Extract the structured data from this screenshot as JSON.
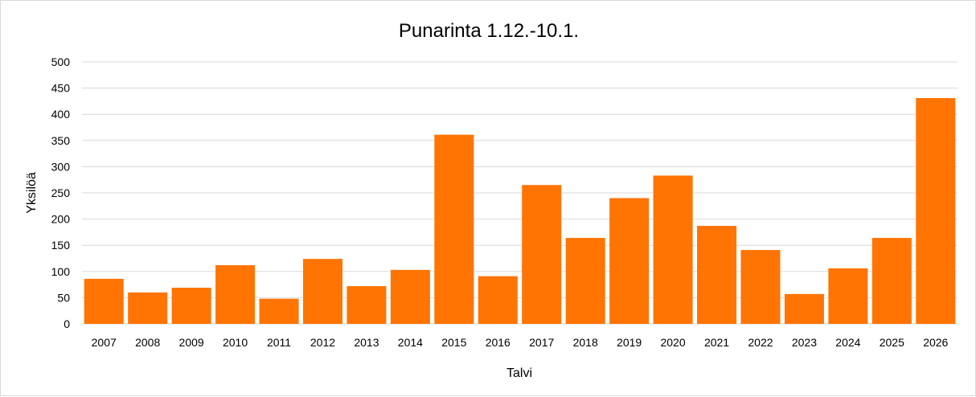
{
  "chart_data": {
    "type": "bar",
    "title": "Punarinta 1.12.-10.1.",
    "xlabel": "Talvi",
    "ylabel": "Yksilöä",
    "categories": [
      "2007",
      "2008",
      "2009",
      "2010",
      "2011",
      "2012",
      "2013",
      "2014",
      "2015",
      "2016",
      "2017",
      "2018",
      "2019",
      "2020",
      "2021",
      "2022",
      "2023",
      "2024",
      "2025",
      "2026"
    ],
    "values": [
      86,
      60,
      69,
      112,
      48,
      124,
      72,
      103,
      361,
      91,
      265,
      164,
      240,
      283,
      187,
      141,
      57,
      106,
      164,
      431
    ],
    "ylim": [
      0,
      500
    ],
    "yticks": [
      0,
      50,
      100,
      150,
      200,
      250,
      300,
      350,
      400,
      450,
      500
    ],
    "grid": true,
    "legend": "none",
    "colors": {
      "bar": "#ff7403",
      "grid": "#d9d9d9"
    }
  }
}
